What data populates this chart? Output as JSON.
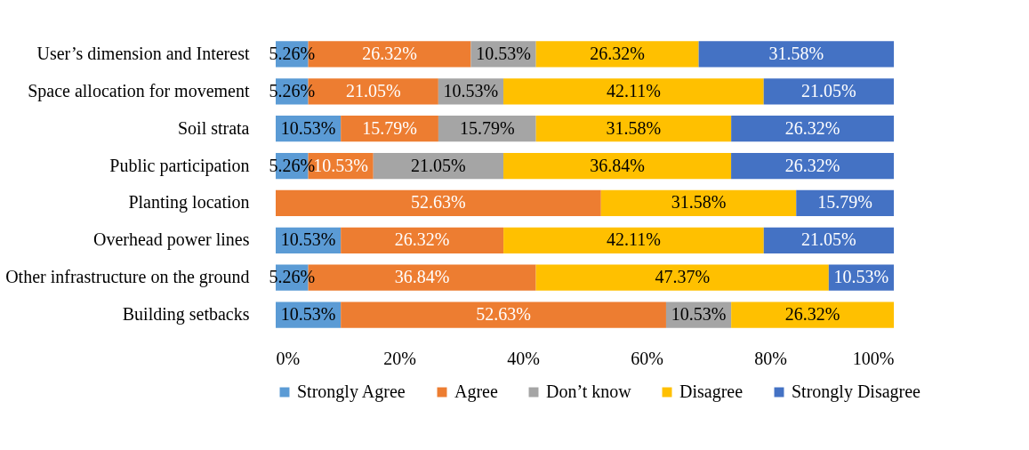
{
  "chart_data": {
    "type": "bar",
    "orientation": "horizontal",
    "stacked": true,
    "categories": [
      "User’s dimension and Interest",
      "Space allocation for movement",
      "Soil strata",
      "Public participation",
      "Planting location",
      "Overhead power lines",
      "Other infrastructure on the ground",
      "Building setbacks"
    ],
    "series": [
      {
        "name": "Strongly Agree",
        "color": "#5b9bd5",
        "values": [
          5.26,
          5.26,
          10.53,
          5.26,
          null,
          10.53,
          5.26,
          10.53
        ],
        "value_labels": [
          "5.26%",
          "5.26%",
          "10.53%",
          "5.26%",
          null,
          "10.53%",
          "5.26%",
          "10.53%"
        ]
      },
      {
        "name": "Agree",
        "color": "#ed7d31",
        "values": [
          26.32,
          21.05,
          15.79,
          10.53,
          52.63,
          26.32,
          36.84,
          52.63
        ],
        "value_labels": [
          "26.32%",
          "21.05%",
          "15.79%",
          "10.53%",
          "52.63%",
          "26.32%",
          "36.84%",
          "52.63%"
        ]
      },
      {
        "name": "Don’t know",
        "color": "#a5a5a5",
        "values": [
          10.53,
          10.53,
          15.79,
          21.05,
          null,
          null,
          null,
          10.53
        ],
        "value_labels": [
          "10.53%",
          "10.53%",
          "15.79%",
          "21.05%",
          null,
          null,
          null,
          "10.53%"
        ]
      },
      {
        "name": "Disagree",
        "color": "#ffc000",
        "values": [
          26.32,
          42.11,
          31.58,
          36.84,
          31.58,
          42.11,
          47.37,
          26.32
        ],
        "value_labels": [
          "26.32%",
          "42.11%",
          "31.58%",
          "36.84%",
          "31.58%",
          "42.11%",
          "47.37%",
          "26.32%"
        ]
      },
      {
        "name": "Strongly Disagree",
        "color": "#4472c4",
        "values": [
          31.58,
          21.05,
          26.32,
          26.32,
          15.79,
          21.05,
          10.53,
          null
        ],
        "value_labels": [
          "31.58%",
          "21.05%",
          "26.32%",
          "26.32%",
          "15.79%",
          "21.05%",
          "10.53%",
          null
        ]
      }
    ],
    "xlim": [
      0,
      100
    ],
    "xticks": [
      {
        "value": 0,
        "label": "0%"
      },
      {
        "value": 20,
        "label": "20%"
      },
      {
        "value": 40,
        "label": "40%"
      },
      {
        "value": 60,
        "label": "60%"
      },
      {
        "value": 80,
        "label": "80%"
      },
      {
        "value": 100,
        "label": "100%"
      }
    ],
    "grid": false,
    "legend": "bottom"
  }
}
